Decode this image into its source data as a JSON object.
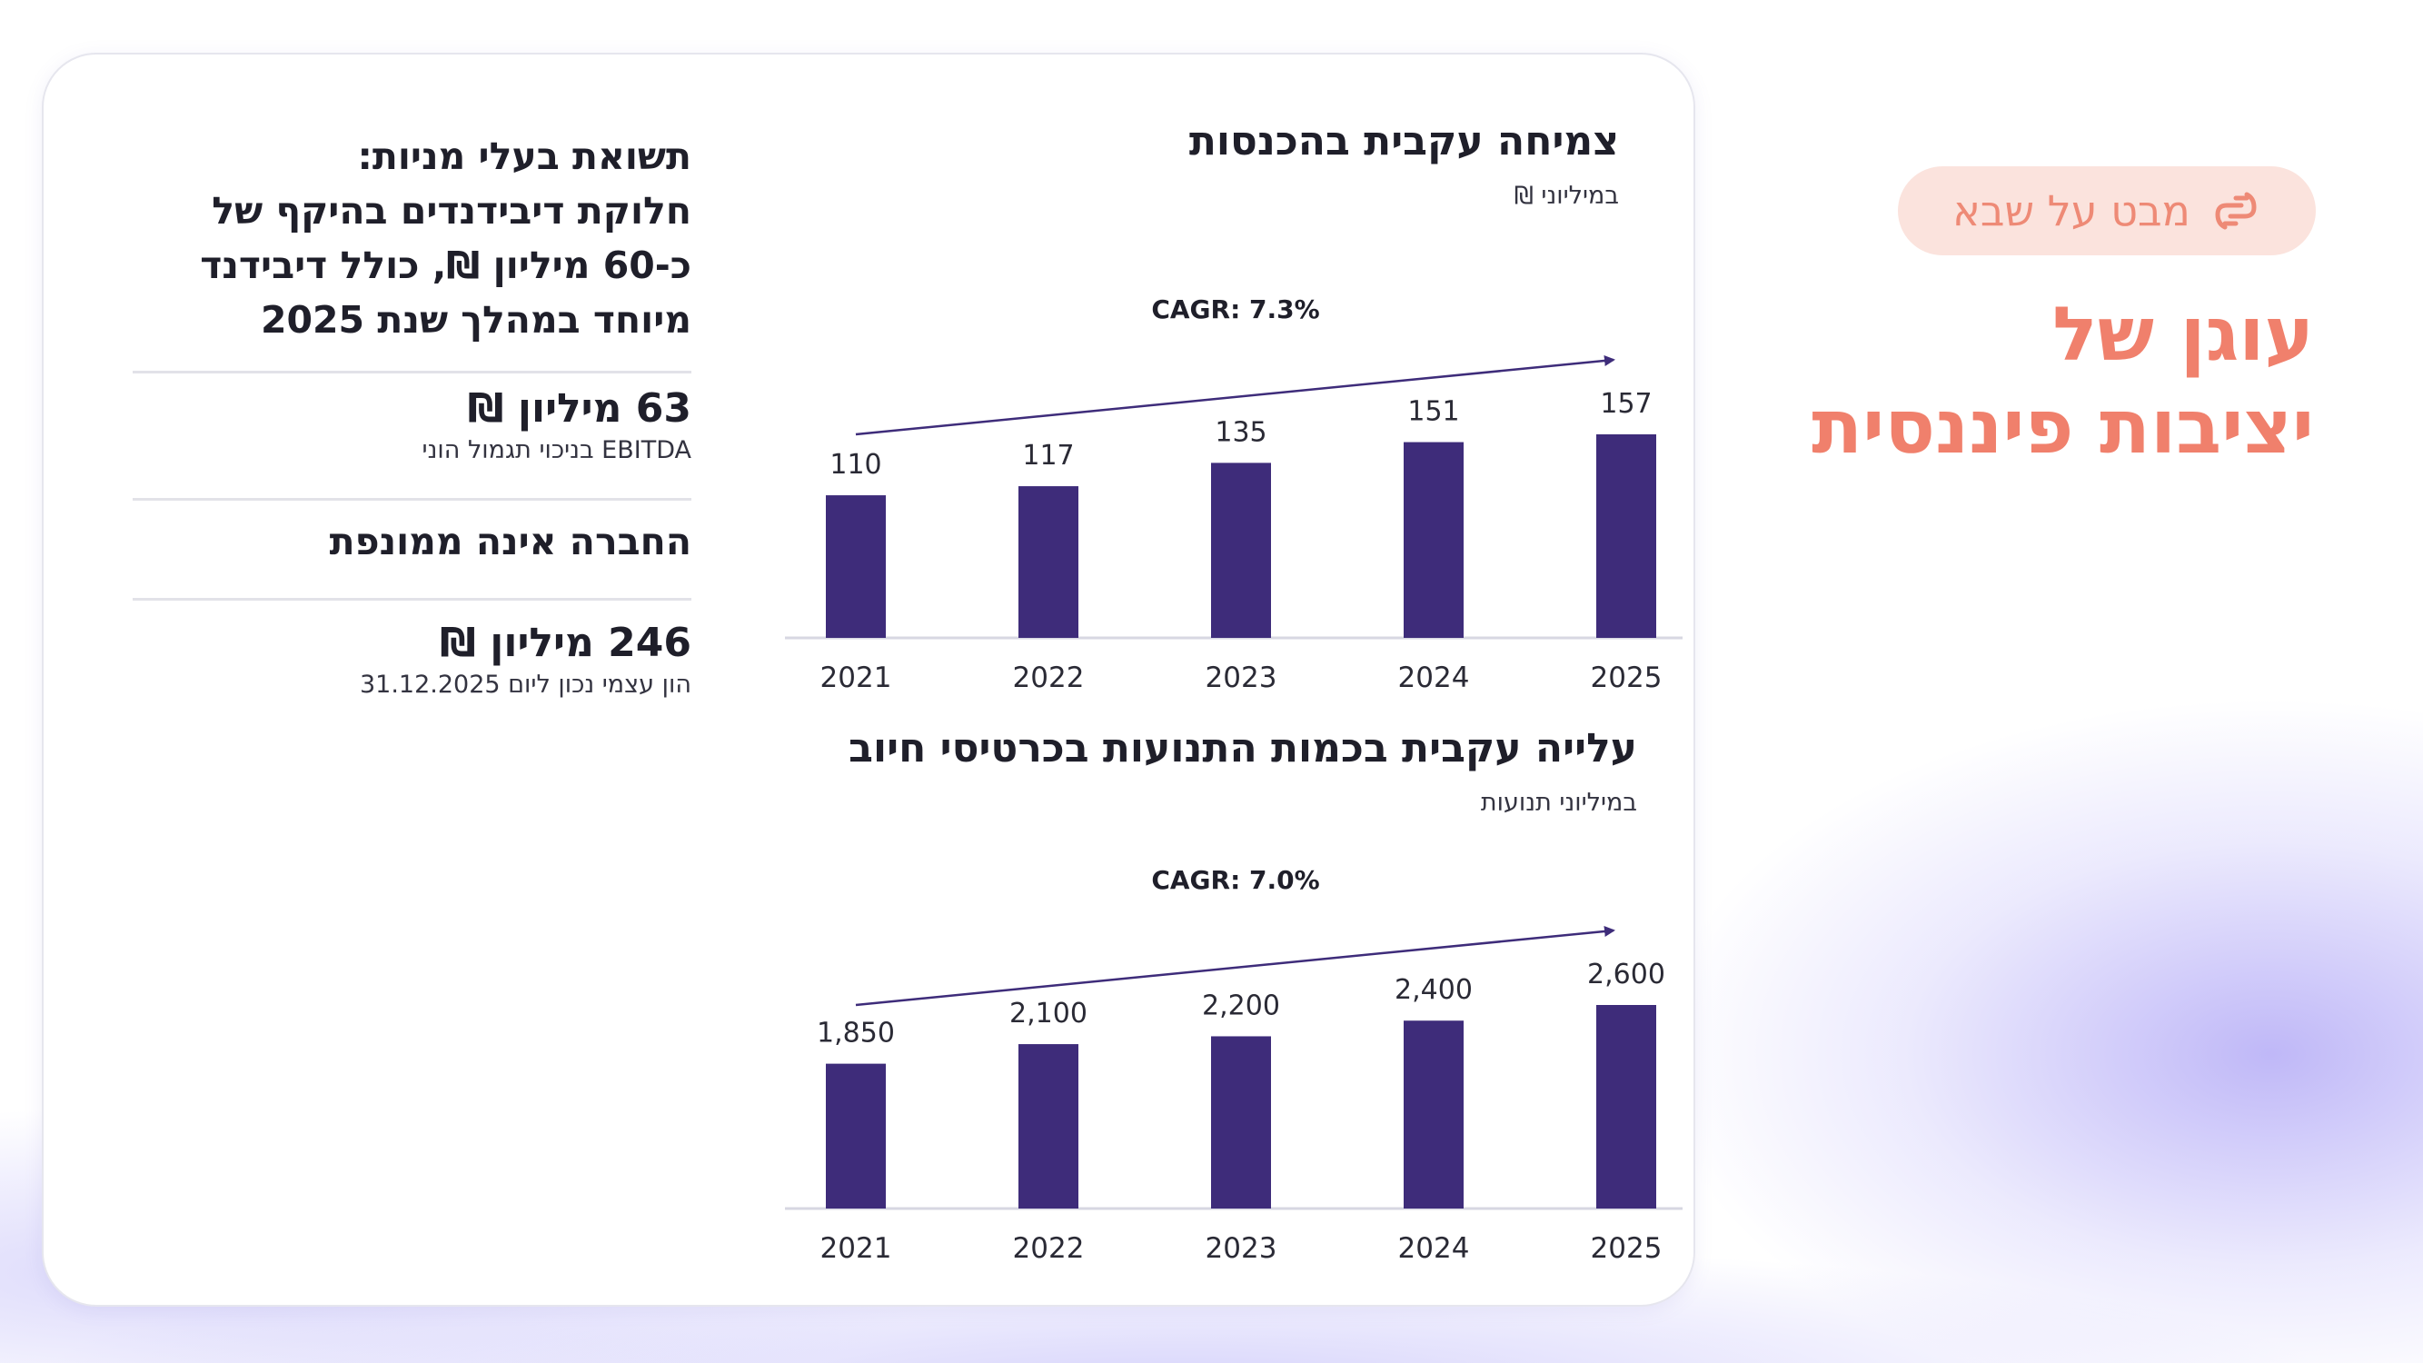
{
  "badge": {
    "text": "מבט על שבא",
    "icon": "brand-logo-icon"
  },
  "hero": {
    "line1": "עוגן של",
    "line2": "יציבות פיננסית"
  },
  "left_panel": {
    "headline": [
      "תשואת בעלי מניות:",
      "חלוקת דיבידנדים בהיקף של",
      "כ-60 מיליון ₪, כולל דיבידנד",
      "מיוחד במהלך שנת 2025"
    ],
    "stat1": {
      "value": "63 מיליון ₪",
      "label": "EBITDA בניכוי תגמול הוני"
    },
    "stat2": {
      "value": "החברה אינה ממונפת"
    },
    "stat3": {
      "value": "246 מיליון ₪",
      "label": "הון עצמי נכון ליום 31.12.2025"
    }
  },
  "colors": {
    "bar": "#3e2c7a",
    "accent": "#f0806c",
    "badge_bg": "#fbe3dd"
  },
  "chart_data": [
    {
      "type": "bar",
      "title": "צמיחה עקבית בהכנסות",
      "subtitle": "במיליוני ₪",
      "annotation": "CAGR: 7.3%",
      "categories": [
        "2021",
        "2022",
        "2023",
        "2024",
        "2025"
      ],
      "values": [
        110,
        117,
        135,
        151,
        157
      ],
      "value_labels": [
        "110",
        "117",
        "135",
        "151",
        "157"
      ],
      "ylim": [
        0,
        157
      ],
      "grid": false
    },
    {
      "type": "bar",
      "title": "עלייה עקבית בכמות התנועות בכרטיסי חיוב",
      "subtitle": "במיליוני תנועות",
      "annotation": "CAGR: 7.0%",
      "categories": [
        "2021",
        "2022",
        "2023",
        "2024",
        "2025"
      ],
      "values": [
        1850,
        2100,
        2200,
        2400,
        2600
      ],
      "value_labels": [
        "1,850",
        "2,100",
        "2,200",
        "2,400",
        "2,600"
      ],
      "ylim": [
        0,
        2600
      ],
      "grid": false
    }
  ]
}
